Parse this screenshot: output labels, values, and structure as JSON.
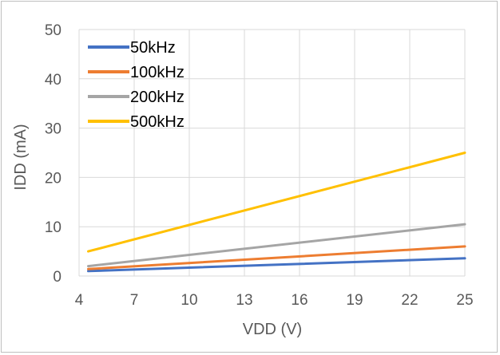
{
  "chart_data": {
    "type": "line",
    "xlabel": "VDD (V)",
    "ylabel": "IDD (mA)",
    "xlim": [
      4,
      25
    ],
    "ylim": [
      0,
      50
    ],
    "xticks": [
      "4",
      "7",
      "10",
      "13",
      "16",
      "19",
      "22",
      "25"
    ],
    "yticks": [
      "0",
      "10",
      "20",
      "30",
      "40",
      "50"
    ],
    "grid": true,
    "legend_position": "top-left",
    "series": [
      {
        "name": "50kHz",
        "color": "#4472c4",
        "x": [
          4.5,
          25
        ],
        "y": [
          1.0,
          3.6
        ]
      },
      {
        "name": "100kHz",
        "color": "#ed7d31",
        "x": [
          4.5,
          25
        ],
        "y": [
          1.4,
          6.0
        ]
      },
      {
        "name": "200kHz",
        "color": "#a5a5a5",
        "x": [
          4.5,
          25
        ],
        "y": [
          2.0,
          10.5
        ]
      },
      {
        "name": "500kHz",
        "color": "#ffc000",
        "x": [
          4.5,
          25
        ],
        "y": [
          5.0,
          25.0
        ]
      }
    ]
  }
}
